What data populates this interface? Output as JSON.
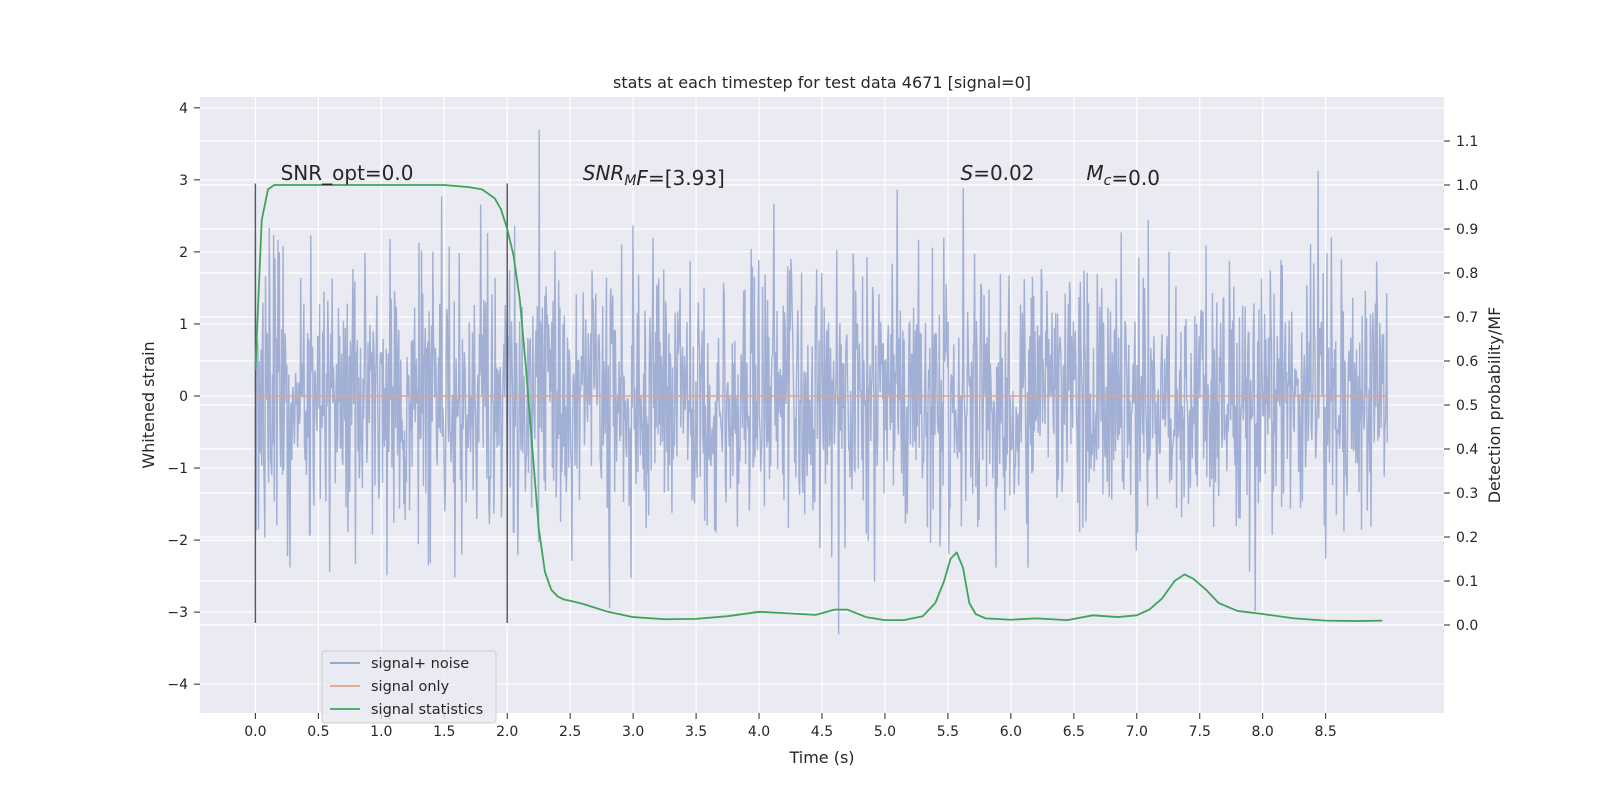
{
  "chart_data": {
    "type": "line",
    "title": "stats at each timestep for test data 4671 [signal=0]",
    "xlabel": "Time (s)",
    "ylabel_left": "Whitened strain",
    "ylabel_right": "Detection probability/MF",
    "xlim": [
      -0.44,
      9.44
    ],
    "ylim_left": [
      -4.4,
      4.15
    ],
    "ylim_right": [
      -0.2,
      1.2
    ],
    "x_ticks": [
      0.0,
      0.5,
      1.0,
      1.5,
      2.0,
      2.5,
      3.0,
      3.5,
      4.0,
      4.5,
      5.0,
      5.5,
      6.0,
      6.5,
      7.0,
      7.5,
      8.0,
      8.5
    ],
    "x_tick_labels": [
      "0.0",
      "0.5",
      "1.0",
      "1.5",
      "2.0",
      "2.5",
      "3.0",
      "3.5",
      "4.0",
      "4.5",
      "5.0",
      "5.5",
      "6.0",
      "6.5",
      "7.0",
      "7.5",
      "8.0",
      "8.5"
    ],
    "y_ticks_left": [
      -4,
      -3,
      -2,
      -1,
      0,
      1,
      2,
      3,
      4
    ],
    "y_tick_labels_left": [
      "−4",
      "−3",
      "−2",
      "−1",
      "0",
      "1",
      "2",
      "3",
      "4"
    ],
    "y_ticks_right": [
      0.0,
      0.1,
      0.2,
      0.3,
      0.4,
      0.5,
      0.6,
      0.7,
      0.8,
      0.9,
      1.0,
      1.1
    ],
    "y_tick_labels_right": [
      "0.0",
      "0.1",
      "0.2",
      "0.3",
      "0.4",
      "0.5",
      "0.6",
      "0.7",
      "0.8",
      "0.9",
      "1.0",
      "1.1"
    ],
    "grid": true,
    "legend_position": "lower-left",
    "legend": [
      {
        "label": "signal+ noise",
        "color": "#8da0cb"
      },
      {
        "label": "signal only",
        "color": "#e5a08c"
      },
      {
        "label": "signal statistics",
        "color": "#3fa45b"
      }
    ],
    "noise_series": {
      "name": "signal+ noise",
      "x_range": [
        0.0,
        8.99
      ],
      "typical_band": [
        -1.1,
        1.1
      ],
      "extremes": [
        -3.6,
        3.8
      ],
      "samples": 1800,
      "color": "#8da0cb",
      "opacity": 0.8
    },
    "signal_series": {
      "name": "signal only",
      "x": [
        0.0,
        8.99
      ],
      "y": [
        0.0,
        0.0
      ],
      "color": "#e5a08c"
    },
    "stat_series": {
      "name": "signal statistics",
      "color": "#3fa45b",
      "x": [
        0.0,
        0.05,
        0.1,
        0.15,
        0.25,
        0.5,
        1.0,
        1.5,
        1.7,
        1.8,
        1.9,
        1.95,
        2.0,
        2.05,
        2.1,
        2.15,
        2.2,
        2.25,
        2.3,
        2.35,
        2.4,
        2.45,
        2.5,
        2.6,
        2.8,
        3.0,
        3.25,
        3.5,
        3.75,
        4.0,
        4.2,
        4.45,
        4.6,
        4.7,
        4.85,
        5.0,
        5.15,
        5.3,
        5.4,
        5.47,
        5.52,
        5.57,
        5.62,
        5.67,
        5.72,
        5.8,
        6.0,
        6.2,
        6.45,
        6.65,
        6.85,
        7.0,
        7.1,
        7.2,
        7.3,
        7.38,
        7.45,
        7.55,
        7.65,
        7.8,
        8.0,
        8.25,
        8.5,
        8.75,
        8.95
      ],
      "y": [
        0.58,
        0.92,
        0.99,
        1.0,
        1.0,
        1.0,
        1.0,
        1.0,
        0.995,
        0.99,
        0.97,
        0.945,
        0.9,
        0.84,
        0.74,
        0.58,
        0.4,
        0.22,
        0.12,
        0.08,
        0.065,
        0.058,
        0.055,
        0.048,
        0.03,
        0.018,
        0.013,
        0.014,
        0.02,
        0.03,
        0.027,
        0.023,
        0.035,
        0.035,
        0.018,
        0.011,
        0.011,
        0.02,
        0.05,
        0.1,
        0.15,
        0.165,
        0.13,
        0.05,
        0.025,
        0.015,
        0.012,
        0.015,
        0.011,
        0.022,
        0.018,
        0.022,
        0.035,
        0.06,
        0.1,
        0.115,
        0.105,
        0.08,
        0.05,
        0.032,
        0.025,
        0.015,
        0.01,
        0.009,
        0.01
      ]
    },
    "vertical_markers": [
      {
        "x": 0.0,
        "y_range": [
          -3.15,
          2.95
        ]
      },
      {
        "x": 2.0,
        "y_range": [
          -3.15,
          2.95
        ]
      }
    ],
    "annotations": [
      {
        "x": 0.2,
        "y": 3.0,
        "parts": [
          {
            "t": "SNR_opt=0.0",
            "i": false
          }
        ]
      },
      {
        "x": 2.6,
        "y": 3.0,
        "parts": [
          {
            "t": "SNR",
            "i": true
          },
          {
            "t": "M",
            "i": true,
            "sub": true
          },
          {
            "t": "F",
            "i": true
          },
          {
            "t": "=[3.93]",
            "i": false
          }
        ]
      },
      {
        "x": 5.6,
        "y": 3.0,
        "parts": [
          {
            "t": "S",
            "i": true
          },
          {
            "t": "=0.02",
            "i": false
          }
        ]
      },
      {
        "x": 6.6,
        "y": 3.0,
        "parts": [
          {
            "t": "M",
            "i": true
          },
          {
            "t": "c",
            "i": true,
            "sub": true
          },
          {
            "t": "=0.0",
            "i": false
          }
        ]
      }
    ]
  }
}
